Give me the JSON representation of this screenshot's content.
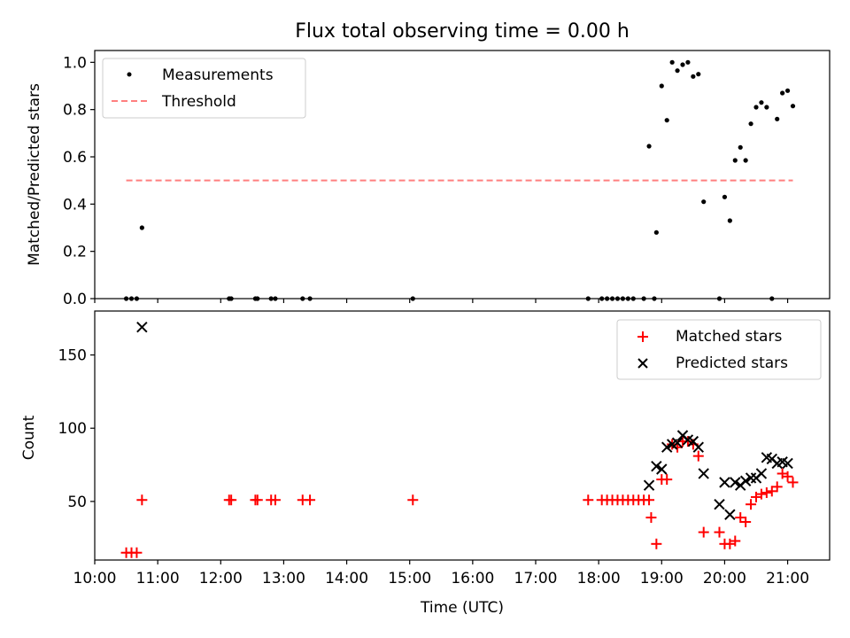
{
  "chart_data": [
    {
      "type": "scatter",
      "title": "Flux total observing time = 0.00 h",
      "ylabel": "Matched/Predicted stars",
      "xlabel": "",
      "xlim": [
        "10:00",
        "21:40"
      ],
      "ylim": [
        0,
        1.05
      ],
      "y_ticks": [
        "0.0",
        "0.2",
        "0.4",
        "0.6",
        "0.8",
        "1.0"
      ],
      "legend_position": "top-left",
      "series": [
        {
          "name": "Measurements",
          "marker": "dot",
          "color": "#000000",
          "points": [
            [
              "10:30",
              0
            ],
            [
              "10:35",
              0
            ],
            [
              "10:40",
              0
            ],
            [
              "10:45",
              0.3
            ],
            [
              "12:08",
              0
            ],
            [
              "12:10",
              0
            ],
            [
              "12:33",
              0
            ],
            [
              "12:35",
              0
            ],
            [
              "12:48",
              0
            ],
            [
              "12:52",
              0
            ],
            [
              "13:18",
              0
            ],
            [
              "13:25",
              0
            ],
            [
              "15:03",
              0
            ],
            [
              "17:50",
              0
            ],
            [
              "18:03",
              0
            ],
            [
              "18:08",
              0
            ],
            [
              "18:13",
              0
            ],
            [
              "18:18",
              0
            ],
            [
              "18:23",
              0
            ],
            [
              "18:28",
              0
            ],
            [
              "18:33",
              0
            ],
            [
              "18:43",
              0
            ],
            [
              "18:53",
              0
            ],
            [
              "18:48",
              0.645
            ],
            [
              "18:55",
              0.28
            ],
            [
              "19:00",
              0.9
            ],
            [
              "19:05",
              0.755
            ],
            [
              "19:10",
              1.0
            ],
            [
              "19:15",
              0.965
            ],
            [
              "19:20",
              0.99
            ],
            [
              "19:25",
              1.0
            ],
            [
              "19:30",
              0.94
            ],
            [
              "19:35",
              0.95
            ],
            [
              "19:40",
              0.41
            ],
            [
              "19:55",
              0
            ],
            [
              "20:00",
              0.43
            ],
            [
              "20:05",
              0.33
            ],
            [
              "20:10",
              0.585
            ],
            [
              "20:15",
              0.64
            ],
            [
              "20:20",
              0.585
            ],
            [
              "20:25",
              0.74
            ],
            [
              "20:30",
              0.81
            ],
            [
              "20:35",
              0.83
            ],
            [
              "20:40",
              0.81
            ],
            [
              "20:45",
              0
            ],
            [
              "20:50",
              0.76
            ],
            [
              "20:55",
              0.87
            ],
            [
              "21:00",
              0.88
            ],
            [
              "21:05",
              0.815
            ]
          ]
        },
        {
          "name": "Threshold",
          "marker": "dashed-line",
          "color": "#ff7f7f",
          "points": [
            [
              "10:30",
              0.5
            ],
            [
              "21:05",
              0.5
            ]
          ]
        }
      ]
    },
    {
      "type": "scatter",
      "title": "",
      "ylabel": "Count",
      "xlabel": "Time (UTC)",
      "xlim": [
        "10:00",
        "21:40"
      ],
      "ylim": [
        10,
        180
      ],
      "y_ticks": [
        "50",
        "100",
        "150"
      ],
      "x_ticks": [
        "10:00",
        "11:00",
        "12:00",
        "13:00",
        "14:00",
        "15:00",
        "16:00",
        "17:00",
        "18:00",
        "19:00",
        "20:00",
        "21:00"
      ],
      "legend_position": "top-right",
      "series": [
        {
          "name": "Matched stars",
          "marker": "plus",
          "color": "#ff0000",
          "points": [
            [
              "10:30",
              15
            ],
            [
              "10:35",
              15
            ],
            [
              "10:40",
              15
            ],
            [
              "10:45",
              51
            ],
            [
              "12:08",
              51
            ],
            [
              "12:10",
              51
            ],
            [
              "12:33",
              51
            ],
            [
              "12:35",
              51
            ],
            [
              "12:48",
              51
            ],
            [
              "12:52",
              51
            ],
            [
              "13:18",
              51
            ],
            [
              "13:25",
              51
            ],
            [
              "15:03",
              51
            ],
            [
              "17:50",
              51
            ],
            [
              "18:03",
              51
            ],
            [
              "18:08",
              51
            ],
            [
              "18:13",
              51
            ],
            [
              "18:18",
              51
            ],
            [
              "18:23",
              51
            ],
            [
              "18:28",
              51
            ],
            [
              "18:33",
              51
            ],
            [
              "18:38",
              51
            ],
            [
              "18:43",
              51
            ],
            [
              "18:48",
              51
            ],
            [
              "18:50",
              39
            ],
            [
              "18:55",
              21
            ],
            [
              "19:00",
              65
            ],
            [
              "19:05",
              65
            ],
            [
              "19:10",
              89
            ],
            [
              "19:15",
              87
            ],
            [
              "19:20",
              91
            ],
            [
              "19:25",
              91
            ],
            [
              "19:30",
              89
            ],
            [
              "19:35",
              81
            ],
            [
              "19:40",
              29
            ],
            [
              "19:55",
              29
            ],
            [
              "20:00",
              21
            ],
            [
              "20:05",
              21
            ],
            [
              "20:10",
              23
            ],
            [
              "20:15",
              39
            ],
            [
              "20:20",
              36
            ],
            [
              "20:25",
              48
            ],
            [
              "20:30",
              53
            ],
            [
              "20:35",
              55
            ],
            [
              "20:40",
              56
            ],
            [
              "20:45",
              57
            ],
            [
              "20:50",
              60
            ],
            [
              "20:55",
              69
            ],
            [
              "21:00",
              67
            ],
            [
              "21:05",
              63
            ]
          ]
        },
        {
          "name": "Predicted stars",
          "marker": "x",
          "color": "#000000",
          "points": [
            [
              "10:45",
              169
            ],
            [
              "18:48",
              61
            ],
            [
              "18:55",
              74
            ],
            [
              "19:00",
              72
            ],
            [
              "19:05",
              87
            ],
            [
              "19:10",
              89
            ],
            [
              "19:15",
              90
            ],
            [
              "19:20",
              95
            ],
            [
              "19:25",
              92
            ],
            [
              "19:30",
              91
            ],
            [
              "19:35",
              87
            ],
            [
              "19:40",
              69
            ],
            [
              "19:55",
              48
            ],
            [
              "20:00",
              63
            ],
            [
              "20:05",
              41
            ],
            [
              "20:10",
              63
            ],
            [
              "20:15",
              61
            ],
            [
              "20:20",
              64
            ],
            [
              "20:25",
              66
            ],
            [
              "20:30",
              66
            ],
            [
              "20:35",
              69
            ],
            [
              "20:40",
              80
            ],
            [
              "20:45",
              79
            ],
            [
              "20:50",
              76
            ],
            [
              "20:55",
              77
            ],
            [
              "21:00",
              76
            ]
          ]
        }
      ]
    }
  ]
}
